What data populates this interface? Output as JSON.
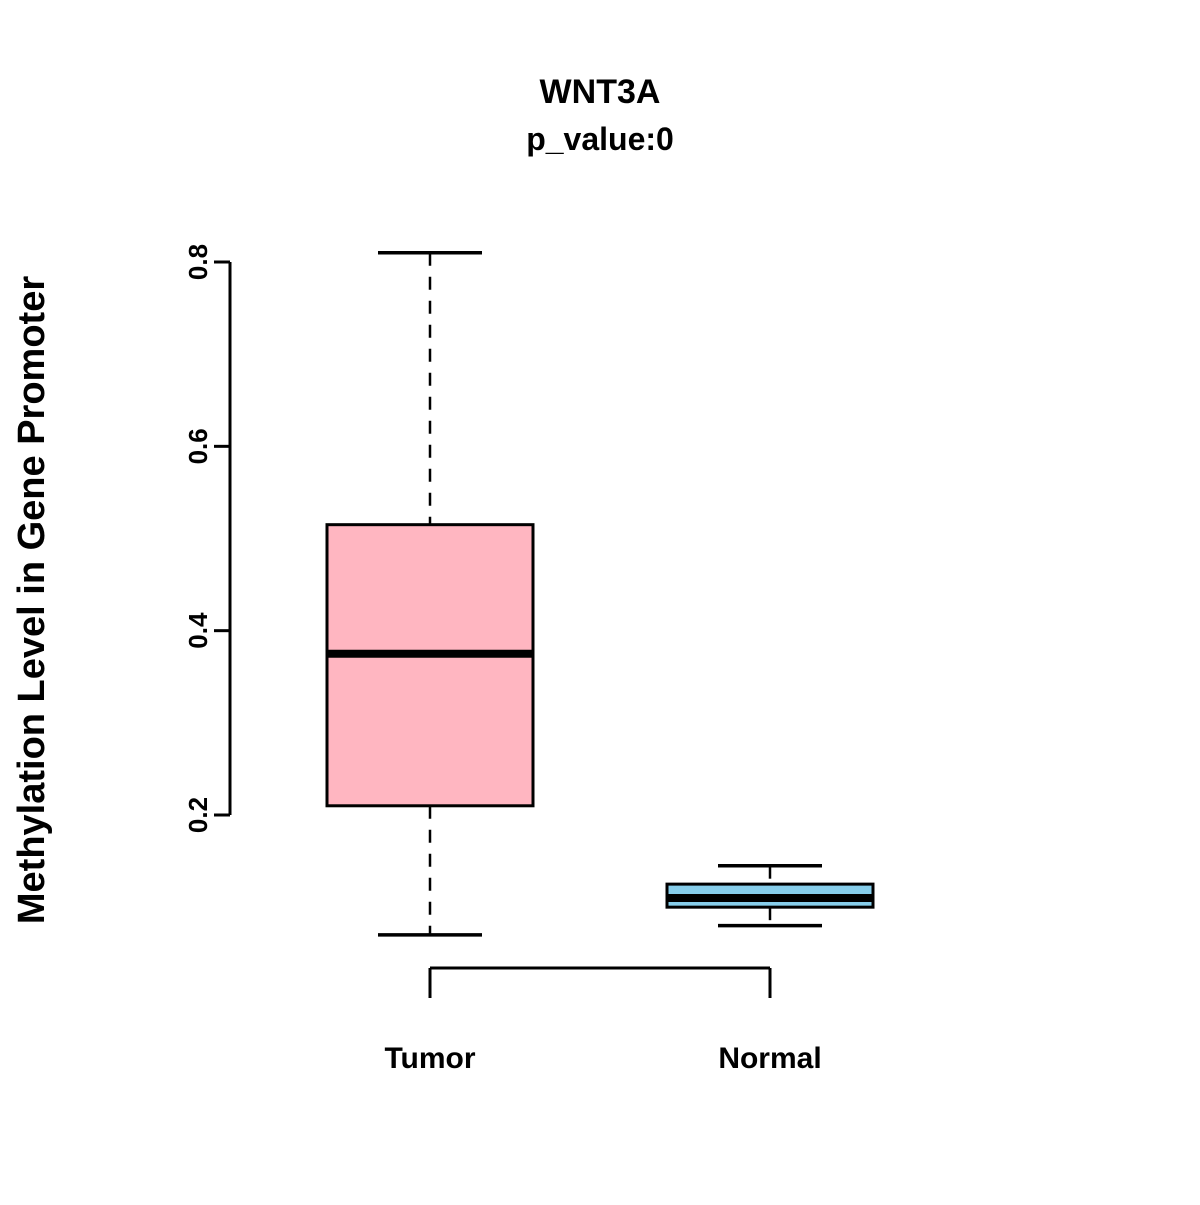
{
  "chart_data": {
    "type": "boxplot",
    "title": "WNT3A",
    "subtitle": "p_value:0",
    "ylabel": "Methylation Level in Gene Promoter",
    "xlabel": "",
    "categories": [
      "Tumor",
      "Normal"
    ],
    "yticks": [
      0.2,
      0.4,
      0.6,
      0.8
    ],
    "ytick_labels": [
      "0.2",
      "0.4",
      "0.6",
      "0.8"
    ],
    "ylim": [
      0.05,
      0.83
    ],
    "grid": false,
    "legend": "none",
    "series": [
      {
        "name": "Tumor",
        "fill_color": "#FFB6C1",
        "whisker_low": 0.07,
        "q1": 0.21,
        "median": 0.375,
        "q3": 0.515,
        "whisker_high": 0.81
      },
      {
        "name": "Normal",
        "fill_color": "#87CEEB",
        "whisker_low": 0.08,
        "q1": 0.1,
        "median": 0.11,
        "q3": 0.125,
        "whisker_high": 0.145
      }
    ]
  },
  "colors": {
    "box_border": "#000000",
    "axis": "#000000",
    "median": "#000000",
    "background": "#FFFFFF"
  }
}
